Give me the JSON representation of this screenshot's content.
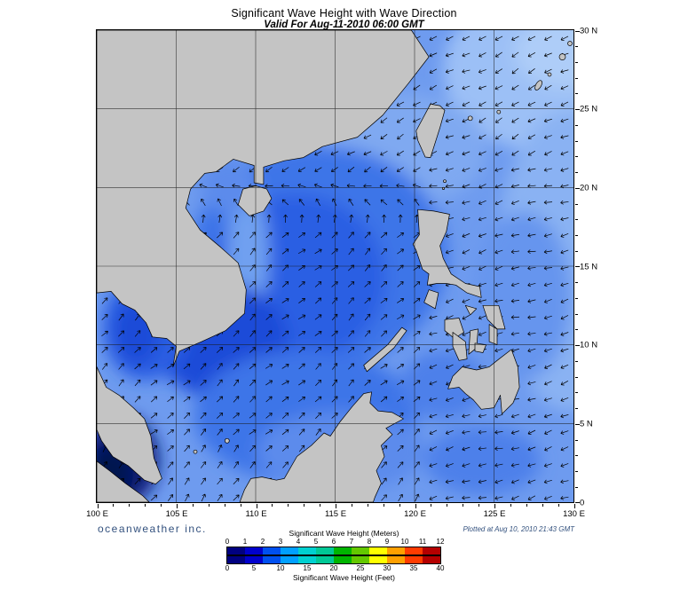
{
  "header": {
    "title": "Significant Wave Height with Wave Direction",
    "subtitle": "Valid For Aug-11-2010 06:00 GMT"
  },
  "axes": {
    "x_ticks": [
      "100 E",
      "105 E",
      "110 E",
      "115 E",
      "120 E",
      "125 E",
      "130 E"
    ],
    "y_ticks": [
      "30 N",
      "25 N",
      "20 N",
      "15 N",
      "10 N",
      "5 N",
      "0"
    ]
  },
  "footer": {
    "brand": "oceanweather inc.",
    "plotted": "Plotted at Aug 10, 2010 21:43 GMT"
  },
  "legend": {
    "meters_label": "Significant Wave Height (Meters)",
    "feet_label": "Significant Wave Height (Feet)",
    "meters_ticks": [
      "0",
      "1",
      "2",
      "3",
      "4",
      "5",
      "6",
      "7",
      "8",
      "9",
      "10",
      "11",
      "12"
    ],
    "feet_ticks": [
      "0",
      "5",
      "10",
      "15",
      "20",
      "25",
      "30",
      "35",
      "40"
    ],
    "colors": [
      "#000080",
      "#0000CD",
      "#0050F0",
      "#00A0FF",
      "#00D0D0",
      "#00C896",
      "#00B400",
      "#64C800",
      "#FFFF00",
      "#FFA000",
      "#FF3C00",
      "#B40000"
    ]
  },
  "map_colors": {
    "land": "#C4C4C4",
    "coastline": "#000000",
    "sea_base": "#6E9BEF"
  }
}
